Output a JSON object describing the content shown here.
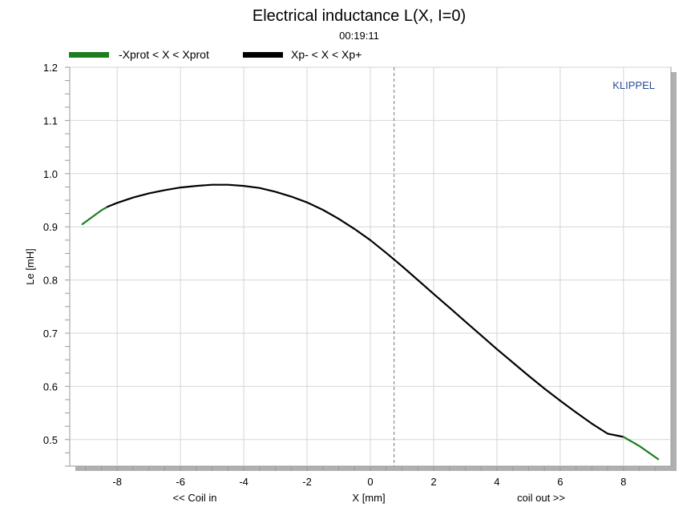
{
  "chart_data": {
    "type": "line",
    "title": "Electrical inductance L(X, I=0)",
    "subtitle": "00:19:11",
    "brand": "KLIPPEL",
    "xlabel": "X [mm]",
    "xlabel_left": "<< Coil in",
    "xlabel_right": "coil out >>",
    "ylabel": "Le [mH]",
    "xlim": [
      -9.5,
      9.5
    ],
    "ylim": [
      0.45,
      1.2
    ],
    "xticks": [
      -8,
      -6,
      -4,
      -2,
      0,
      2,
      4,
      6,
      8
    ],
    "yticks": [
      0.5,
      0.6,
      0.7,
      0.8,
      0.9,
      1.0,
      1.1,
      1.2
    ],
    "ytick_labels": [
      "0.5",
      "0.6",
      "0.7",
      "0.8",
      "0.9",
      "1.0",
      "1.1",
      "1.2"
    ],
    "grid": true,
    "legend_position": "top-left",
    "colors": {
      "green": "#1e7d1e",
      "black": "#000000",
      "brand": "#2a4f9a"
    },
    "marker_line_x": 0.75,
    "series": [
      {
        "name": "-Xprot < X < Xprot",
        "color": "#1e7d1e",
        "x": [
          -9.1,
          -8.8,
          -8.5,
          -8.3
        ],
        "y": [
          0.905,
          0.918,
          0.931,
          0.938
        ]
      },
      {
        "name": "Xp- < X < Xp+",
        "color": "#000000",
        "x": [
          -8.3,
          -8,
          -7.5,
          -7,
          -6.5,
          -6,
          -5.5,
          -5,
          -4.5,
          -4,
          -3.5,
          -3,
          -2.5,
          -2,
          -1.5,
          -1,
          -0.5,
          0,
          0.5,
          1,
          1.5,
          2,
          2.5,
          3,
          3.5,
          4,
          4.5,
          5,
          5.5,
          6,
          6.5,
          7,
          7.5,
          8
        ],
        "y": [
          0.938,
          0.945,
          0.955,
          0.963,
          0.969,
          0.974,
          0.977,
          0.979,
          0.979,
          0.977,
          0.973,
          0.966,
          0.957,
          0.946,
          0.932,
          0.915,
          0.896,
          0.875,
          0.851,
          0.826,
          0.8,
          0.774,
          0.748,
          0.722,
          0.696,
          0.67,
          0.645,
          0.62,
          0.596,
          0.573,
          0.551,
          0.53,
          0.511,
          0.505
        ]
      },
      {
        "name": "",
        "color": "#1e7d1e",
        "x": [
          8,
          8.5,
          9.1
        ],
        "y": [
          0.505,
          0.488,
          0.463
        ]
      }
    ]
  }
}
